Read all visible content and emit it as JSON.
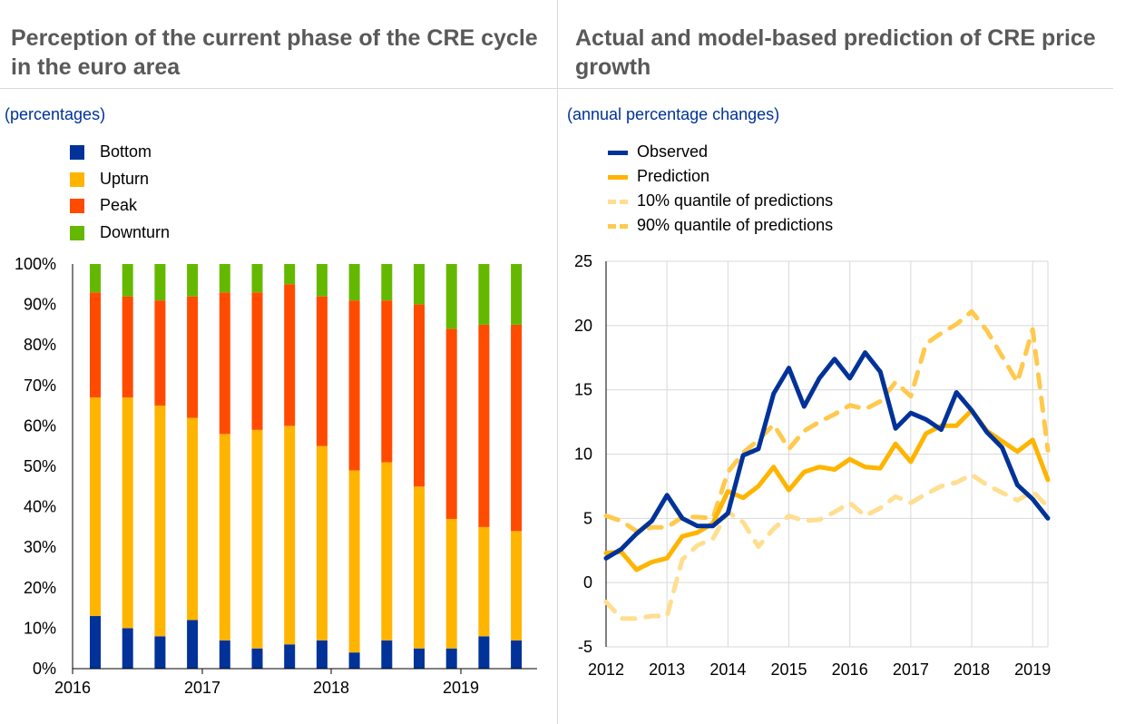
{
  "left": {
    "title": "Perception of the current phase of the CRE cycle in the euro area",
    "subtitle": "(percentages)"
  },
  "right": {
    "title": "Actual and model-based prediction of CRE price growth",
    "subtitle": "(annual percentage changes)"
  },
  "chart_data": [
    {
      "type": "bar",
      "stacked": true,
      "title": "Perception of the current phase of the CRE cycle in the euro area",
      "subtitle": "(percentages)",
      "x_tick_labels": [
        "2016",
        "2017",
        "2018",
        "2019"
      ],
      "y_tick_labels": [
        "0%",
        "10%",
        "20%",
        "30%",
        "40%",
        "50%",
        "60%",
        "70%",
        "80%",
        "90%",
        "100%"
      ],
      "ylim": [
        0,
        100
      ],
      "legend_position": "top-left",
      "grid": false,
      "series": [
        {
          "name": "Bottom",
          "color": "#003299",
          "values": [
            13,
            10,
            8,
            12,
            7,
            5,
            6,
            7,
            4,
            7,
            5,
            5,
            8,
            7
          ]
        },
        {
          "name": "Upturn",
          "color": "#FFB400",
          "values": [
            54,
            57,
            57,
            50,
            51,
            54,
            54,
            48,
            45,
            44,
            40,
            32,
            27,
            27
          ]
        },
        {
          "name": "Peak",
          "color": "#FF4B00",
          "values": [
            26,
            25,
            26,
            30,
            35,
            34,
            35,
            37,
            42,
            40,
            45,
            47,
            50,
            51
          ]
        },
        {
          "name": "Downturn",
          "color": "#65B800",
          "values": [
            7,
            8,
            9,
            8,
            7,
            7,
            5,
            8,
            9,
            9,
            10,
            16,
            15,
            15
          ]
        }
      ]
    },
    {
      "type": "line",
      "title": "Actual and model-based prediction of CRE price growth",
      "subtitle": "(annual percentage changes)",
      "x_tick_labels": [
        "2012",
        "2013",
        "2014",
        "2015",
        "2016",
        "2017",
        "2018",
        "2019"
      ],
      "xlim": [
        2012,
        2019.25
      ],
      "ylim": [
        -5,
        25
      ],
      "y_tick_labels": [
        "-5",
        "0",
        "5",
        "10",
        "15",
        "20",
        "25"
      ],
      "grid": true,
      "legend_position": "top-left",
      "x": [
        2012,
        2012.25,
        2012.5,
        2012.75,
        2013,
        2013.25,
        2013.5,
        2013.75,
        2014,
        2014.25,
        2014.5,
        2014.75,
        2015,
        2015.25,
        2015.5,
        2015.75,
        2016,
        2016.25,
        2016.5,
        2016.75,
        2017,
        2017.25,
        2017.5,
        2017.75,
        2018,
        2018.25,
        2018.5,
        2018.75,
        2019,
        2019.25
      ],
      "series": [
        {
          "name": "Observed",
          "color": "#003299",
          "style": "solid",
          "values": [
            1.9,
            2.6,
            3.8,
            4.8,
            6.8,
            5.0,
            4.4,
            4.4,
            5.4,
            9.9,
            10.4,
            14.7,
            16.7,
            13.7,
            15.9,
            17.4,
            15.9,
            17.9,
            16.4,
            12.0,
            13.2,
            12.7,
            11.9,
            14.8,
            13.4,
            11.7,
            10.5,
            7.6,
            6.5,
            5.0
          ]
        },
        {
          "name": "Prediction",
          "color": "#FFB400",
          "style": "solid",
          "values": [
            2.3,
            2.4,
            1.0,
            1.6,
            1.9,
            3.6,
            3.9,
            4.6,
            7.1,
            6.6,
            7.5,
            9.0,
            7.2,
            8.6,
            9.0,
            8.8,
            9.6,
            9.0,
            8.9,
            10.8,
            9.4,
            11.6,
            12.2,
            12.2,
            13.4,
            11.8,
            11.0,
            10.2,
            11.1,
            8.0
          ]
        },
        {
          "name": "10% quantile of predictions",
          "color": "#FFDE8F",
          "style": "dashed",
          "values": [
            -1.5,
            -2.8,
            -2.8,
            -2.6,
            -2.6,
            1.8,
            2.9,
            3.4,
            5.5,
            4.7,
            2.8,
            4.2,
            5.2,
            4.8,
            4.9,
            5.5,
            6.2,
            5.2,
            5.8,
            6.7,
            6.2,
            6.9,
            7.5,
            7.8,
            8.4,
            7.6,
            7.0,
            6.4,
            7.1,
            5.9
          ]
        },
        {
          "name": "90% quantile of predictions",
          "color": "#FFC94D",
          "style": "dashed",
          "values": [
            5.2,
            4.8,
            4.0,
            4.3,
            4.3,
            5.1,
            5.1,
            5.0,
            8.6,
            10.1,
            11.1,
            12.3,
            10.4,
            11.8,
            12.5,
            13.1,
            13.8,
            13.5,
            14.1,
            15.6,
            14.5,
            18.6,
            19.4,
            20.1,
            21.1,
            19.6,
            17.6,
            15.6,
            19.7,
            10.3
          ]
        }
      ]
    }
  ]
}
